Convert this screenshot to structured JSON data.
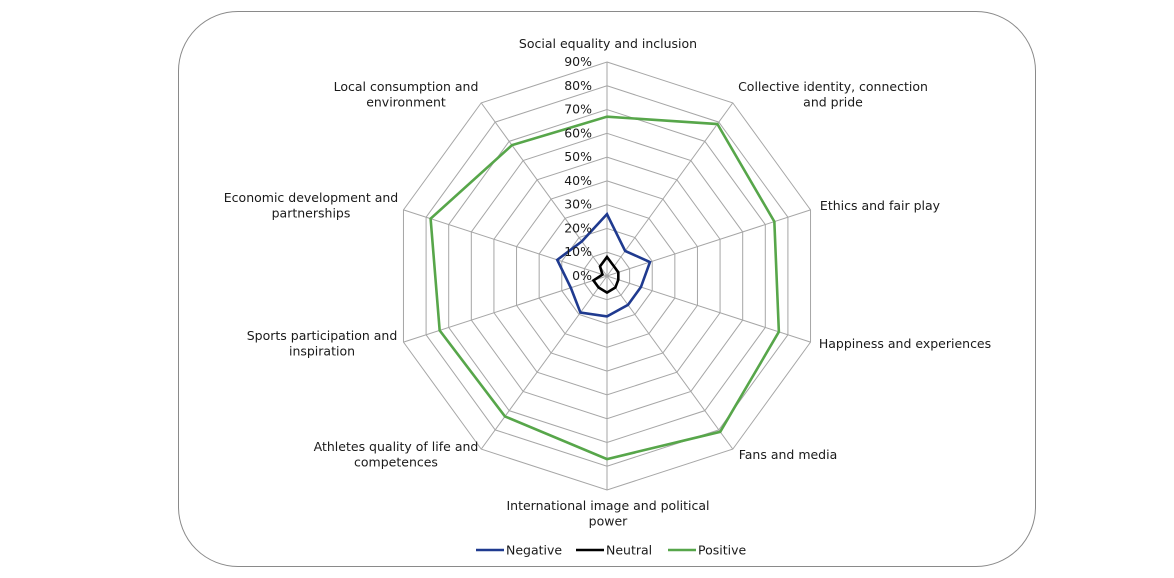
{
  "chart_data": {
    "type": "radar",
    "title": "",
    "categories": [
      "Social equality and inclusion",
      "Collective identity, connection and pride",
      "Ethics and fair play",
      "Happiness and experiences",
      "Fans and media",
      "International image and political power",
      "Athletes quality of life and competences",
      "Sports participation and inspiration",
      "Economic development and partnerships",
      "Local consumption and environment"
    ],
    "category_lines": [
      [
        "Social equality and inclusion"
      ],
      [
        "Collective identity, connection",
        "and pride"
      ],
      [
        "Ethics and fair play"
      ],
      [
        "Happiness and experiences"
      ],
      [
        "Fans and media"
      ],
      [
        "International image and political",
        "power"
      ],
      [
        "Athletes quality of life and",
        "competences"
      ],
      [
        "Sports participation and",
        "inspiration"
      ],
      [
        "Economic development and",
        "partnerships"
      ],
      [
        "Local consumption and",
        "environment"
      ]
    ],
    "ticks": [
      "0%",
      "10%",
      "20%",
      "30%",
      "40%",
      "50%",
      "60%",
      "70%",
      "80%",
      "90%"
    ],
    "rmax": 90,
    "series": [
      {
        "name": "Negative",
        "color": "#1f3a8f",
        "values": [
          26,
          13,
          19,
          15,
          15,
          17,
          19,
          16,
          22,
          18
        ]
      },
      {
        "name": "Neutral",
        "color": "#000000",
        "values": [
          8,
          5,
          5,
          5,
          6,
          7,
          6,
          6,
          2,
          5
        ]
      },
      {
        "name": "Positive",
        "color": "#57a64a",
        "values": [
          67,
          79,
          74,
          76,
          81,
          77,
          73,
          74,
          78,
          68
        ]
      }
    ],
    "legend_position": "bottom"
  }
}
